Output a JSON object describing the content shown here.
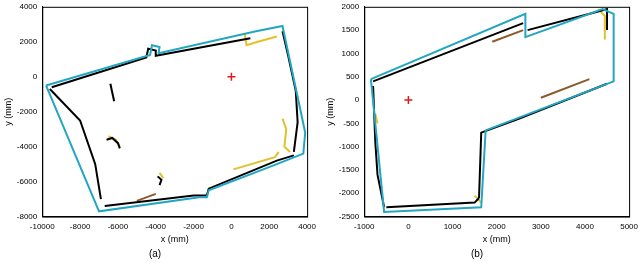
{
  "chart_data": [
    {
      "type": "scatter",
      "title": "(a)",
      "x_label": "x (mm)",
      "y_label": "y (mm)",
      "xlim": [
        -10000,
        4000
      ],
      "xticks": [
        -10000,
        -8000,
        -6000,
        -4000,
        -2000,
        0,
        2000,
        4000
      ],
      "ylim": [
        -8000,
        4000
      ],
      "yticks": [
        -8000,
        -6000,
        -4000,
        -2000,
        0,
        2000,
        4000
      ],
      "grid": false,
      "series": [
        {
          "color": "#22a6c2",
          "line_style": "solid",
          "marker": "none",
          "x": [
            -9800,
            -4300,
            -4200,
            -3800,
            -3850,
            1300,
            2700,
            3900,
            3800,
            2400,
            -1200,
            -1300,
            -1700,
            -7000,
            -9800
          ],
          "values": [
            -500,
            1250,
            1800,
            1700,
            1350,
            2600,
            2900,
            -3200,
            -4400,
            -5000,
            -6500,
            -6900,
            -6900,
            -7700,
            -500
          ]
        },
        {
          "color": "#000000",
          "line_style": "solid",
          "marker": "none",
          "x": [
            -9500,
            -4500,
            -4400,
            -4000,
            -4000,
            1000
          ],
          "values": [
            -600,
            1100,
            1600,
            1500,
            1200,
            2200
          ]
        },
        {
          "color": "#000000",
          "line_style": "solid",
          "marker": "none",
          "x": [
            2700,
            3000,
            3400,
            3500,
            3300
          ],
          "values": [
            2600,
            1200,
            -800,
            -2600,
            -4300
          ]
        },
        {
          "color": "#000000",
          "line_style": "solid",
          "marker": "none",
          "x": [
            3300,
            2400,
            -1200,
            -1300,
            -2000,
            -6700
          ],
          "values": [
            -4500,
            -4800,
            -6400,
            -6800,
            -6800,
            -7400
          ]
        },
        {
          "color": "#000000",
          "line_style": "solid",
          "marker": "none",
          "x": [
            -9600,
            -8000,
            -7200,
            -6900
          ],
          "values": [
            -700,
            -2500,
            -5000,
            -7000
          ]
        },
        {
          "color": "#000000",
          "line_style": "solid",
          "marker": "none",
          "x": [
            -6600,
            -6300,
            -6000,
            -5900
          ],
          "values": [
            -3600,
            -3500,
            -3800,
            -4100
          ]
        },
        {
          "color": "#000000",
          "line_style": "solid",
          "marker": "none",
          "x": [
            -3900,
            -3700,
            -3800
          ],
          "values": [
            -5700,
            -5900,
            -6200
          ]
        },
        {
          "color": "#000000",
          "line_style": "solid",
          "marker": "none",
          "x": [
            -6400,
            -6200
          ],
          "values": [
            -400,
            -1400
          ]
        },
        {
          "color": "#e3c12a",
          "line_style": "solid",
          "marker": "none",
          "x": [
            700,
            800,
            1400,
            2400
          ],
          "values": [
            2500,
            1800,
            2000,
            2300
          ]
        },
        {
          "color": "#e3c12a",
          "line_style": "solid",
          "marker": "none",
          "x": [
            2700,
            2900,
            2800,
            3100
          ],
          "values": [
            -2400,
            -3000,
            -4000,
            -4300
          ]
        },
        {
          "color": "#e3c12a",
          "line_style": "solid",
          "marker": "none",
          "x": [
            100,
            2300,
            2500
          ],
          "values": [
            -5300,
            -4600,
            -4300
          ]
        },
        {
          "color": "#e3c12a",
          "line_style": "solid",
          "marker": "none",
          "x": [
            -6500,
            -6100,
            -5900
          ],
          "values": [
            -3400,
            -3600,
            -4000
          ]
        },
        {
          "color": "#e3c12a",
          "line_style": "solid",
          "marker": "none",
          "x": [
            -3800,
            -3600
          ],
          "values": [
            -5500,
            -5800
          ]
        },
        {
          "color": "#8b5a2b",
          "line_style": "solid",
          "marker": "none",
          "x": [
            -5000,
            -4000
          ],
          "values": [
            -7100,
            -6700
          ]
        },
        {
          "color": "#e41a1c",
          "line_style": "none",
          "marker": "cross",
          "x": [
            0
          ],
          "values": [
            0
          ]
        }
      ]
    },
    {
      "type": "scatter",
      "title": "(b)",
      "x_label": "x (mm)",
      "y_label": "y (mm)",
      "xlim": [
        -1000,
        5000
      ],
      "xticks": [
        -1000,
        0,
        1000,
        2000,
        3000,
        4000,
        5000
      ],
      "ylim": [
        -2500,
        2000
      ],
      "yticks": [
        -2500,
        -2000,
        -1500,
        -1000,
        -500,
        0,
        500,
        1000,
        1500,
        2000
      ],
      "grid": false,
      "series": [
        {
          "color": "#22a6c2",
          "line_style": "solid",
          "marker": "none",
          "x": [
            -850,
            2650,
            2650,
            4400,
            4650,
            4650,
            1750,
            1650,
            -550,
            -850
          ],
          "values": [
            450,
            1850,
            1350,
            1950,
            1850,
            400,
            -650,
            -2300,
            -2400,
            450
          ]
        },
        {
          "color": "#000000",
          "line_style": "solid",
          "marker": "none",
          "x": [
            -800,
            2600
          ],
          "values": [
            400,
            1650
          ]
        },
        {
          "color": "#000000",
          "line_style": "solid",
          "marker": "none",
          "x": [
            -800,
            -750,
            -700,
            -550
          ],
          "values": [
            300,
            -900,
            -1600,
            -2300
          ]
        },
        {
          "color": "#000000",
          "line_style": "solid",
          "marker": "none",
          "x": [
            -500,
            1500,
            1600
          ],
          "values": [
            -2300,
            -2200,
            -2100
          ]
        },
        {
          "color": "#000000",
          "line_style": "solid",
          "marker": "none",
          "x": [
            1600,
            1650,
            2500,
            4500
          ],
          "values": [
            -2100,
            -700,
            -400,
            350
          ]
        },
        {
          "color": "#000000",
          "line_style": "solid",
          "marker": "none",
          "x": [
            2700,
            4300,
            4500,
            4500
          ],
          "values": [
            1500,
            1900,
            1950,
            1500
          ]
        },
        {
          "color": "#e3c12a",
          "line_style": "solid",
          "marker": "none",
          "x": [
            4300,
            4450,
            4450
          ],
          "values": [
            1950,
            1800,
            1300
          ]
        },
        {
          "color": "#e3c12a",
          "line_style": "solid",
          "marker": "none",
          "x": [
            1500,
            1650
          ],
          "values": [
            -2050,
            -2200
          ]
        },
        {
          "color": "#e3c12a",
          "line_style": "solid",
          "marker": "none",
          "x": [
            -750,
            -700
          ],
          "values": [
            -300,
            -500
          ]
        },
        {
          "color": "#8b5a2b",
          "line_style": "solid",
          "marker": "none",
          "x": [
            1900,
            2600
          ],
          "values": [
            1250,
            1500
          ]
        },
        {
          "color": "#8b5a2b",
          "line_style": "solid",
          "marker": "none",
          "x": [
            3000,
            4100
          ],
          "values": [
            50,
            450
          ]
        },
        {
          "color": "#e41a1c",
          "line_style": "none",
          "marker": "cross",
          "x": [
            0
          ],
          "values": [
            0
          ]
        }
      ]
    }
  ]
}
